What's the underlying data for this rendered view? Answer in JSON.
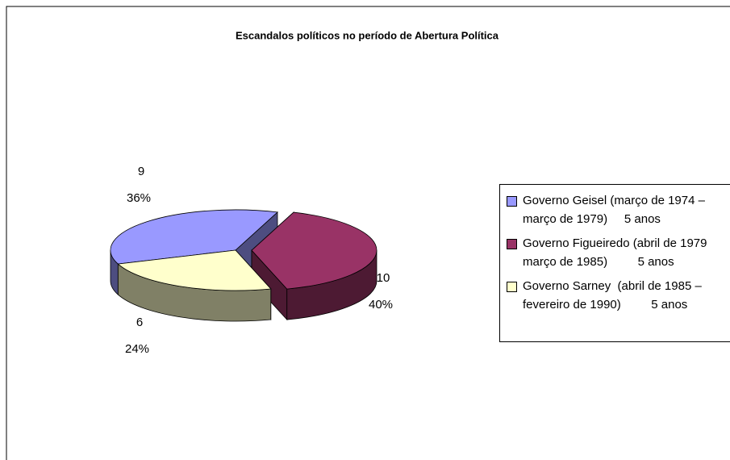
{
  "chart_data": {
    "type": "pie",
    "title": "Escandalos políticos no período de Abertura  Política",
    "categories": [
      "Governo Geisel (março de 1974 – março de 1979)     5 anos",
      "Governo Figueiredo (abril de 1979 março de 1985)         5 anos",
      "Governo Sarney  (abril de 1985 – fevereiro de 1990)         5 anos"
    ],
    "values": [
      9,
      10,
      6
    ],
    "percent_labels": [
      "36%",
      "40%",
      "24%"
    ],
    "colors": [
      "#9999ff",
      "#993366",
      "#ffffcc"
    ],
    "legend": "right"
  }
}
